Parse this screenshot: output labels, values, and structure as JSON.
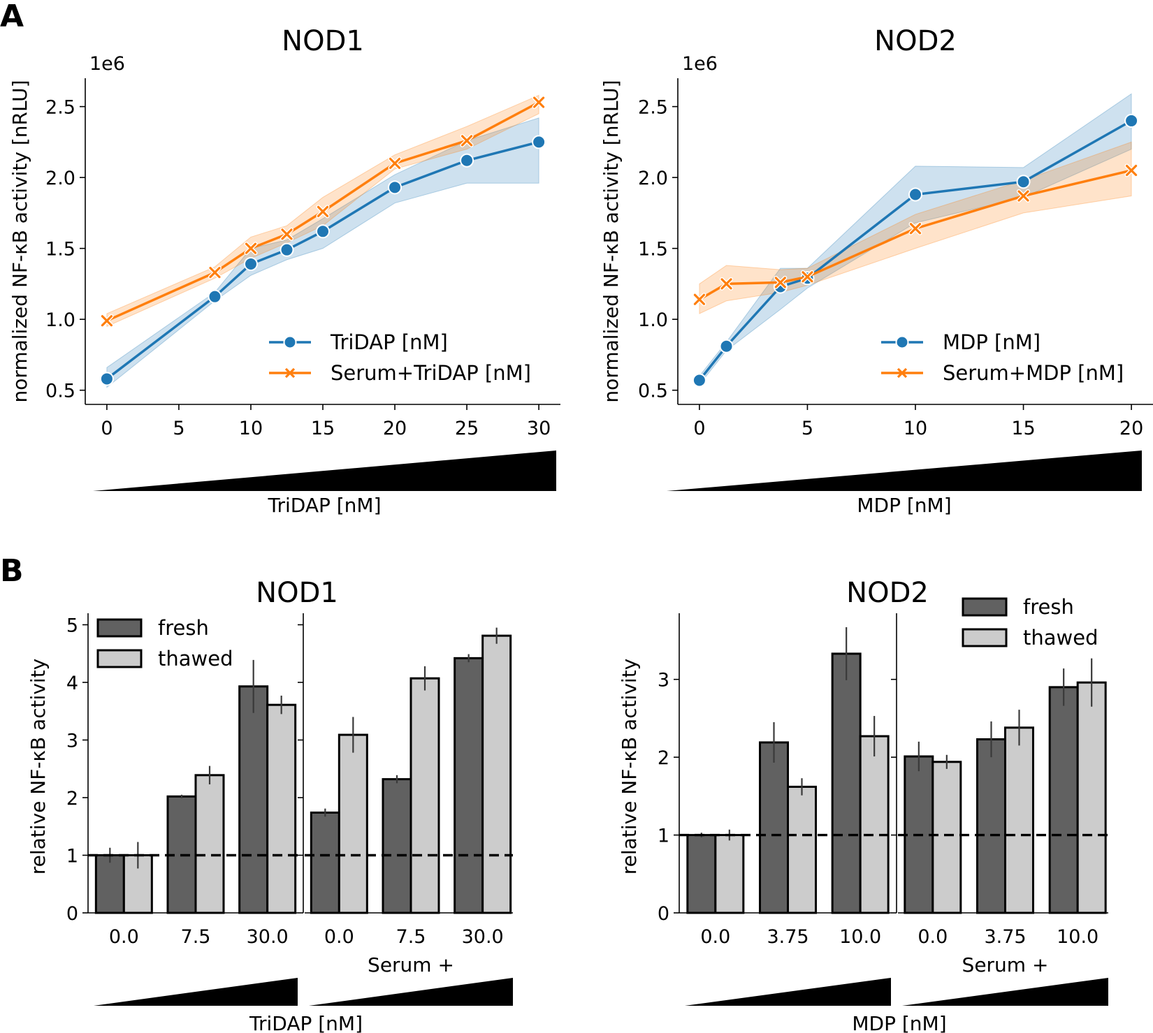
{
  "colors": {
    "blue": "#1f77b4",
    "orange": "#ff7f0e",
    "fresh": "#616161",
    "thawed": "#cccccc"
  },
  "chart_data": [
    {
      "panel": "A",
      "type": "line",
      "title": "NOD1",
      "xlabel": "TriDAP [nM]",
      "ylabel": "normalized NF-κB activity [nRLU]",
      "offset_label": "1e6",
      "xlim": [
        -1.5,
        31.5
      ],
      "ylim": [
        0.4,
        2.7
      ],
      "xticks": [
        0,
        5,
        10,
        15,
        20,
        25,
        30
      ],
      "yticks": [
        0.5,
        1.0,
        1.5,
        2.0,
        2.5
      ],
      "xtick_labels": [
        "0",
        "5",
        "10",
        "15",
        "20",
        "25",
        "30"
      ],
      "ytick_labels": [
        "0.5",
        "1.0",
        "1.5",
        "2.0",
        "2.5"
      ],
      "legend_position": "lower-right",
      "series": [
        {
          "name": "TriDAP [nM]",
          "color": "blue",
          "marker": "circle",
          "x": [
            0,
            7.5,
            10,
            12.5,
            15,
            20,
            25,
            30
          ],
          "y": [
            0.58,
            1.16,
            1.39,
            1.49,
            1.62,
            1.93,
            2.12,
            2.25
          ],
          "ci_low": [
            0.52,
            1.13,
            1.31,
            1.42,
            1.5,
            1.82,
            1.96,
            1.96
          ],
          "ci_high": [
            0.66,
            1.19,
            1.5,
            1.56,
            1.71,
            2.02,
            2.26,
            2.42
          ]
        },
        {
          "name": "Serum+TriDAP [nM]",
          "color": "orange",
          "marker": "x",
          "x": [
            0,
            7.5,
            10,
            12.5,
            15,
            20,
            25,
            30
          ],
          "y": [
            0.99,
            1.33,
            1.5,
            1.6,
            1.76,
            2.1,
            2.26,
            2.53
          ],
          "ci_low": [
            0.95,
            1.29,
            1.43,
            1.54,
            1.66,
            2.06,
            2.2,
            2.45
          ],
          "ci_high": [
            1.04,
            1.37,
            1.58,
            1.66,
            1.86,
            2.16,
            2.36,
            2.58
          ]
        }
      ]
    },
    {
      "panel": "",
      "type": "line",
      "title": "NOD2",
      "xlabel": "MDP [nM]",
      "ylabel": "normalized NF-κB activity [nRLU]",
      "offset_label": "1e6",
      "xlim": [
        -1,
        21
      ],
      "ylim": [
        0.4,
        2.7
      ],
      "xticks": [
        0,
        5,
        10,
        15,
        20
      ],
      "yticks": [
        0.5,
        1.0,
        1.5,
        2.0,
        2.5
      ],
      "xtick_labels": [
        "0",
        "5",
        "10",
        "15",
        "20"
      ],
      "ytick_labels": [
        "0.5",
        "1.0",
        "1.5",
        "2.0",
        "2.5"
      ],
      "legend_position": "lower-right",
      "series": [
        {
          "name": "MDP [nM]",
          "color": "blue",
          "marker": "circle",
          "x": [
            0,
            1.25,
            3.75,
            5,
            10,
            15,
            20
          ],
          "y": [
            0.57,
            0.81,
            1.23,
            1.29,
            1.88,
            1.97,
            2.4
          ],
          "ci_low": [
            0.54,
            0.78,
            1.07,
            1.22,
            1.68,
            1.86,
            2.2
          ],
          "ci_high": [
            0.6,
            0.84,
            1.36,
            1.36,
            2.08,
            2.07,
            2.59
          ]
        },
        {
          "name": "Serum+MDP [nM]",
          "color": "orange",
          "marker": "x",
          "x": [
            0,
            1.25,
            3.75,
            5,
            10,
            15,
            20
          ],
          "y": [
            1.14,
            1.25,
            1.26,
            1.3,
            1.64,
            1.87,
            2.05
          ],
          "ci_low": [
            1.04,
            1.13,
            1.19,
            1.24,
            1.5,
            1.75,
            1.87
          ],
          "ci_high": [
            1.25,
            1.38,
            1.35,
            1.36,
            1.74,
            1.98,
            2.25
          ]
        }
      ]
    },
    {
      "panel": "B",
      "type": "bar",
      "title": "NOD1",
      "xlabel": "TriDAP [nM]",
      "ylabel": "relative NF-κB activity",
      "group_label": "Serum +",
      "ylim": [
        0,
        5.2
      ],
      "yticks": [
        0,
        1,
        2,
        3,
        4,
        5
      ],
      "ytick_labels": [
        "0",
        "1",
        "2",
        "3",
        "4",
        "5"
      ],
      "reference_line": 1,
      "legend_position": "top-left",
      "legend": [
        "fresh",
        "thawed"
      ],
      "subplots": [
        {
          "categories": [
            "0.0",
            "7.5",
            "30.0"
          ],
          "series": [
            {
              "name": "fresh",
              "values": [
                1.0,
                2.02,
                3.93
              ],
              "err": [
                0.13,
                0.03,
                0.46
              ]
            },
            {
              "name": "thawed",
              "values": [
                1.0,
                2.39,
                3.61
              ],
              "err": [
                0.23,
                0.16,
                0.16
              ]
            }
          ]
        },
        {
          "categories": [
            "0.0",
            "7.5",
            "30.0"
          ],
          "series": [
            {
              "name": "fresh",
              "values": [
                1.74,
                2.32,
                4.42
              ],
              "err": [
                0.07,
                0.07,
                0.07
              ]
            },
            {
              "name": "thawed",
              "values": [
                3.09,
                4.07,
                4.81
              ],
              "err": [
                0.31,
                0.21,
                0.14
              ]
            }
          ]
        }
      ]
    },
    {
      "panel": "",
      "type": "bar",
      "title": "NOD2",
      "xlabel": "MDP [nM]",
      "ylabel": "relative NF-κB activity",
      "group_label": "Serum +",
      "ylim": [
        0,
        3.85
      ],
      "yticks": [
        0,
        1,
        2,
        3
      ],
      "ytick_labels": [
        "0",
        "1",
        "2",
        "3"
      ],
      "reference_line": 1,
      "legend_position": "top-right",
      "legend": [
        "fresh",
        "thawed"
      ],
      "subplots": [
        {
          "categories": [
            "0.0",
            "3.75",
            "10.0"
          ],
          "series": [
            {
              "name": "fresh",
              "values": [
                1.0,
                2.19,
                3.33
              ],
              "err": [
                0.03,
                0.26,
                0.34
              ]
            },
            {
              "name": "thawed",
              "values": [
                1.0,
                1.62,
                2.27
              ],
              "err": [
                0.07,
                0.11,
                0.26
              ]
            }
          ]
        },
        {
          "categories": [
            "0.0",
            "3.75",
            "10.0"
          ],
          "series": [
            {
              "name": "fresh",
              "values": [
                2.01,
                2.23,
                2.9
              ],
              "err": [
                0.19,
                0.23,
                0.24
              ]
            },
            {
              "name": "thawed",
              "values": [
                1.94,
                2.38,
                2.96
              ],
              "err": [
                0.09,
                0.23,
                0.31
              ]
            }
          ]
        }
      ]
    }
  ]
}
